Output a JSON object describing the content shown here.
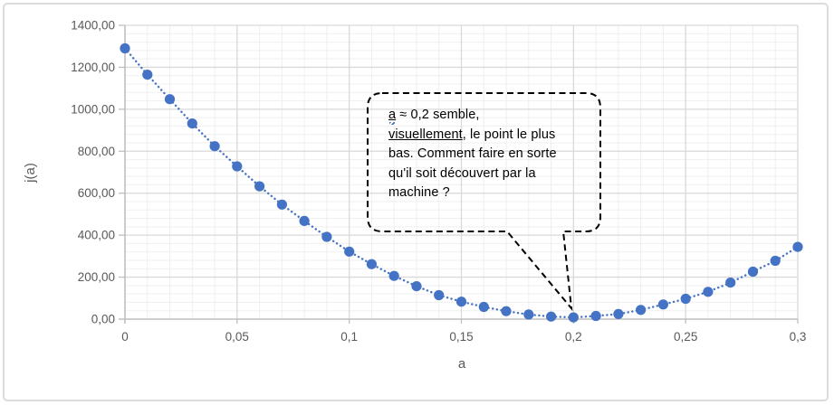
{
  "accent_color": "#4472C4",
  "axis_text_color": "#595959",
  "major_grid_color": "#d9d9d9",
  "minor_grid_color": "#efefef",
  "axis_line_color": "#bfbfbf",
  "callout_border_color": "#000000",
  "chart_data": {
    "type": "scatter",
    "title": "",
    "xlabel": "a",
    "ylabel": "j(a)",
    "xlim": [
      0,
      0.3
    ],
    "ylim": [
      0,
      1400
    ],
    "x_tick_values": [
      0,
      0.05,
      0.1,
      0.15,
      0.2,
      0.25,
      0.3
    ],
    "x_ticks": [
      "0",
      "0,05",
      "0,1",
      "0,15",
      "0,2",
      "0,25",
      "0,3"
    ],
    "y_tick_values": [
      0,
      200,
      400,
      600,
      800,
      1000,
      1200,
      1400
    ],
    "y_ticks": [
      "0,00",
      "200,00",
      "400,00",
      "600,00",
      "800,00",
      "1000,00",
      "1200,00",
      "1400,00"
    ],
    "x_minor_step": 0.01,
    "y_minor_step": 40,
    "grid": "major+minor",
    "legend": "none",
    "marker_style": "filled-circle-with-dotted-connector",
    "x": [
      0,
      0.01,
      0.02,
      0.03,
      0.04,
      0.05,
      0.06,
      0.07,
      0.08,
      0.09,
      0.1,
      0.11,
      0.12,
      0.13,
      0.14,
      0.15,
      0.16,
      0.17,
      0.18,
      0.19,
      0.2,
      0.21,
      0.22,
      0.23,
      0.24,
      0.25,
      0.26,
      0.27,
      0.28,
      0.29,
      0.3
    ],
    "y": [
      1290,
      1165,
      1048,
      932,
      824,
      728,
      633,
      546,
      468,
      392,
      322,
      262,
      206,
      157,
      114,
      83,
      58,
      38,
      22,
      12,
      8,
      15,
      24,
      44,
      70,
      97,
      130,
      174,
      226,
      278,
      344
    ]
  },
  "annotation": {
    "target_x": 0.2,
    "lines": [
      [
        {
          "text": "a",
          "underline": true,
          "spellcheck": true
        },
        {
          "text": " ≈ 0,2 semble,"
        }
      ],
      [
        {
          "text": "visuellement",
          "underline": true
        },
        {
          "text": ", le point le plus"
        }
      ],
      [
        {
          "text": "bas. Comment faire en sorte"
        }
      ],
      [
        {
          "text": "qu'il soit découvert par la"
        }
      ],
      [
        {
          "text": "machine ?"
        }
      ]
    ]
  }
}
